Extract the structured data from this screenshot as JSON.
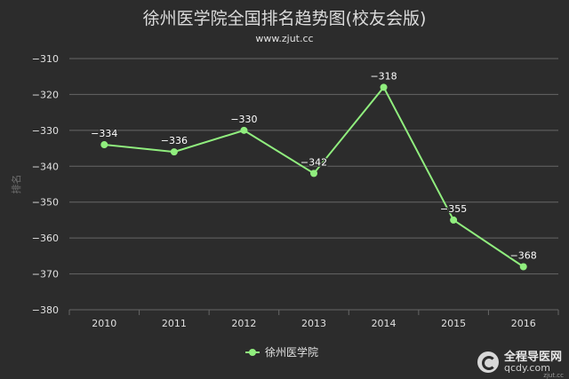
{
  "chart_data": {
    "type": "line",
    "title": "徐州医学院全国排名趋势图(校友会版)",
    "subtitle": "www.zjut.cc",
    "ylabel": "排名",
    "xlabel": "",
    "categories": [
      "2010",
      "2011",
      "2012",
      "2013",
      "2014",
      "2015",
      "2016"
    ],
    "series": [
      {
        "name": "徐州医学院",
        "values": [
          -334,
          -336,
          -330,
          -342,
          -318,
          -355,
          -368
        ]
      }
    ],
    "data_labels": [
      "−334",
      "−336",
      "−330",
      "−342",
      "−318",
      "−355",
      "−368"
    ],
    "yticks": [
      "−310",
      "−320",
      "−330",
      "−340",
      "−350",
      "−360",
      "−370",
      "−380"
    ],
    "ylim": [
      -380,
      -310
    ],
    "grid": true,
    "legend_position": "bottom",
    "colors": {
      "line": "#90ee7e",
      "grid": "#666666",
      "text": "#e0e0e0",
      "axis_label": "#6e6e6e"
    }
  },
  "watermark": {
    "name": "全程导医网",
    "domain": "qcdy.com",
    "small": "zjut.cc"
  }
}
